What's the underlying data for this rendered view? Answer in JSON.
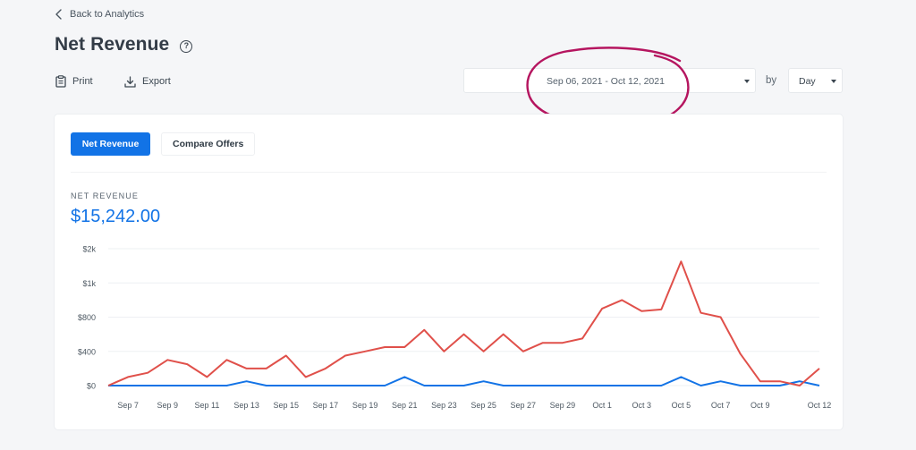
{
  "nav": {
    "back_label": "Back to Analytics"
  },
  "header": {
    "title": "Net Revenue"
  },
  "actions": {
    "print_label": "Print",
    "export_label": "Export"
  },
  "filters": {
    "date_range": "Sep 06, 2021 - Oct 12, 2021",
    "by_label": "by",
    "period": "Day"
  },
  "annotation_color": "#b5155f",
  "tabs": [
    {
      "label": "Net Revenue",
      "active": true
    },
    {
      "label": "Compare Offers",
      "active": false
    }
  ],
  "metric": {
    "label": "NET REVENUE",
    "value": "$15,242.00"
  },
  "colors": {
    "accent": "#1273e6",
    "series_primary": "#1273e6",
    "series_secondary": "#e0504a"
  },
  "chart_data": {
    "type": "line",
    "ytick_values": [
      0,
      400,
      800,
      1200,
      1600
    ],
    "ytick_labels": [
      "$0",
      "$400",
      "$800",
      "$1k",
      "$2k"
    ],
    "ylim": [
      0,
      1600
    ],
    "xtick_labels": [
      "Sep 7",
      "Sep 9",
      "Sep 11",
      "Sep 13",
      "Sep 15",
      "Sep 17",
      "Sep 19",
      "Sep 21",
      "Sep 23",
      "Sep 25",
      "Sep 27",
      "Sep 29",
      "Oct 1",
      "Oct 3",
      "Oct 5",
      "Oct 7",
      "Oct 9",
      "Oct 12"
    ],
    "x": [
      "Sep 6",
      "Sep 7",
      "Sep 8",
      "Sep 9",
      "Sep 10",
      "Sep 11",
      "Sep 12",
      "Sep 13",
      "Sep 14",
      "Sep 15",
      "Sep 16",
      "Sep 17",
      "Sep 18",
      "Sep 19",
      "Sep 20",
      "Sep 21",
      "Sep 22",
      "Sep 23",
      "Sep 24",
      "Sep 25",
      "Sep 26",
      "Sep 27",
      "Sep 28",
      "Sep 29",
      "Sep 30",
      "Oct 1",
      "Oct 2",
      "Oct 3",
      "Oct 4",
      "Oct 5",
      "Oct 6",
      "Oct 7",
      "Oct 8",
      "Oct 9",
      "Oct 10",
      "Oct 11",
      "Oct 12"
    ],
    "grid": true,
    "series": [
      {
        "values": [
          0,
          100,
          150,
          300,
          250,
          100,
          300,
          200,
          200,
          350,
          100,
          200,
          350,
          400,
          450,
          450,
          650,
          400,
          600,
          400,
          600,
          400,
          500,
          500,
          550,
          900,
          1000,
          870,
          890,
          1450,
          850,
          800,
          370,
          50,
          50,
          0,
          200
        ]
      },
      {
        "values": [
          0,
          0,
          0,
          0,
          0,
          0,
          0,
          50,
          0,
          0,
          0,
          0,
          0,
          0,
          0,
          100,
          0,
          0,
          0,
          50,
          0,
          0,
          0,
          0,
          0,
          0,
          0,
          0,
          0,
          100,
          0,
          50,
          0,
          0,
          0,
          50,
          0
        ]
      }
    ]
  }
}
